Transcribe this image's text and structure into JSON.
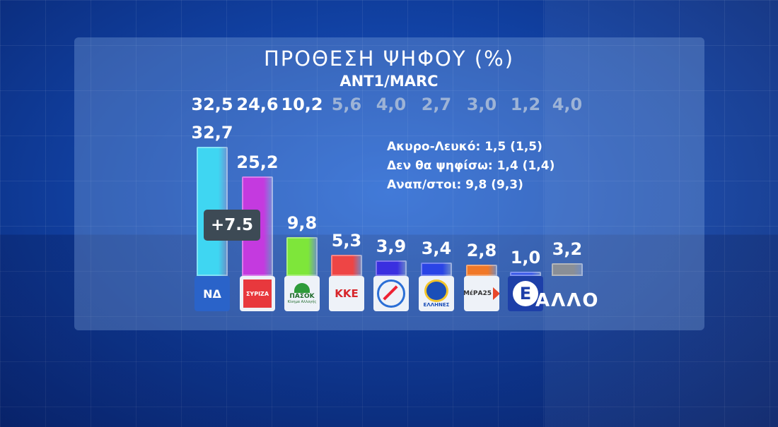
{
  "header": {
    "title": "ΠΡΟΘΕΣΗ ΨΗΦΟΥ (%)",
    "subtitle": "ANT1/MARC"
  },
  "chart_data": {
    "type": "bar",
    "title": "ΠΡΟΘΕΣΗ ΨΗΦΟΥ (%)",
    "subtitle": "ANT1/MARC",
    "ylim": [
      0,
      35
    ],
    "grid": false,
    "parties": [
      {
        "name": "ΝΔ",
        "value": 32.7,
        "value_label": "32,7",
        "previous_label": "32,5",
        "color": "#3fd6f2",
        "icon": "nd-logo"
      },
      {
        "name": "ΣΥΡΙΖΑ",
        "value": 25.2,
        "value_label": "25,2",
        "previous_label": "24,6",
        "color": "#c43adf",
        "icon": "syriza-logo"
      },
      {
        "name": "ΠΑΣΟΚ",
        "value": 9.8,
        "value_label": "9,8",
        "previous_label": "10,2",
        "color": "#7ee63a",
        "icon": "pasok-logo"
      },
      {
        "name": "ΚΚΕ",
        "value": 5.3,
        "value_label": "5,3",
        "previous_label": "5,6",
        "color": "#ee4545",
        "icon": "kke-logo"
      },
      {
        "name": "",
        "value": 3.9,
        "value_label": "3,9",
        "previous_label": "4,0",
        "color": "#3a2fe0",
        "icon": "compass-logo"
      },
      {
        "name": "ΕΛΛΗΝΕΣ",
        "value": 3.4,
        "value_label": "3,4",
        "previous_label": "2,7",
        "color": "#2a44e6",
        "icon": "ellines-logo"
      },
      {
        "name": "ΜέΡΑ25",
        "value": 2.8,
        "value_label": "2,8",
        "previous_label": "3,0",
        "color": "#f07828",
        "icon": "mera25-logo"
      },
      {
        "name": "",
        "value": 1.0,
        "value_label": "1,0",
        "previous_label": "1,2",
        "color": "#3454e8",
        "icon": "e-logo"
      },
      {
        "name": "ΑΛΛΟ",
        "value": 3.2,
        "value_label": "3,2",
        "previous_label": "4,0",
        "color": "#8a8f96",
        "icon": "none"
      }
    ],
    "annotations": {
      "change_badge": "+7.5",
      "other_label": "ΑΛΛΟ"
    }
  },
  "stats": [
    "Ακυρο-Λευκό: 1,5 (1,5)",
    "Δεν θα ψηφίσω: 1,4 (1,4)",
    "Αναπ/στοι: 9,8 (9,3)"
  ],
  "logos": {
    "nd": "ΝΔ",
    "syriza": "ΣΥΡΙΖΑ",
    "pasok": "ΠΑΣΟΚ",
    "pasok_sub": "Κίνημα Αλλαγής",
    "kke": "ΚΚΕ",
    "ellines": "ΕΛΛΗΝΕΣ",
    "mera25": "ΜέΡΑ25",
    "e": "Ε"
  }
}
